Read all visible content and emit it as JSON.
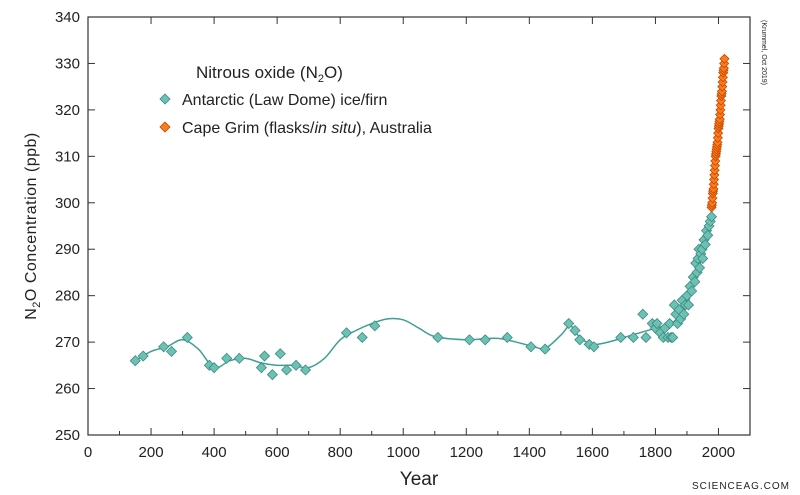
{
  "chart_data": {
    "type": "scatter",
    "xlabel": "Year",
    "ylabel": "Concentration (ppb)",
    "ylabel_species": {
      "base": "N",
      "sub": "2",
      "tail": "O"
    },
    "xlim": [
      0,
      2100
    ],
    "ylim": [
      250,
      340
    ],
    "xticks": [
      0,
      200,
      400,
      600,
      800,
      1000,
      1200,
      1400,
      1600,
      1800,
      2000
    ],
    "yticks": [
      250,
      260,
      270,
      280,
      290,
      300,
      310,
      320,
      330,
      340
    ],
    "grid": false,
    "legend": {
      "placement": "top-left",
      "title": {
        "pre": "Nitrous oxide (N",
        "sub": "2",
        "post": "O)"
      },
      "entries": [
        {
          "series": "law_dome",
          "text": "Antarctic (Law Dome) ice/firn"
        },
        {
          "series": "cape_grim",
          "pre": "Cape Grim (flasks/",
          "italic": "in situ",
          "post": "), Australia"
        }
      ]
    },
    "series": [
      {
        "id": "law_dome",
        "name": "Antarctic (Law Dome) ice/firn",
        "color": "#6cc1b5",
        "stroke": "#3f8a80",
        "marker": "diamond",
        "points": [
          [
            150,
            266
          ],
          [
            175,
            267
          ],
          [
            240,
            269
          ],
          [
            265,
            268
          ],
          [
            315,
            271
          ],
          [
            385,
            265
          ],
          [
            400,
            264.5
          ],
          [
            440,
            266.5
          ],
          [
            480,
            266.5
          ],
          [
            550,
            264.5
          ],
          [
            560,
            267
          ],
          [
            585,
            263
          ],
          [
            610,
            267.5
          ],
          [
            630,
            264
          ],
          [
            660,
            265
          ],
          [
            690,
            264
          ],
          [
            820,
            272
          ],
          [
            870,
            271
          ],
          [
            910,
            273.5
          ],
          [
            1110,
            271
          ],
          [
            1210,
            270.5
          ],
          [
            1260,
            270.5
          ],
          [
            1330,
            271
          ],
          [
            1405,
            269
          ],
          [
            1450,
            268.5
          ],
          [
            1525,
            274
          ],
          [
            1545,
            272.5
          ],
          [
            1560,
            270.5
          ],
          [
            1590,
            269.5
          ],
          [
            1605,
            269
          ],
          [
            1690,
            271
          ],
          [
            1730,
            271
          ],
          [
            1760,
            276
          ],
          [
            1770,
            271
          ],
          [
            1790,
            274
          ],
          [
            1800,
            273
          ],
          [
            1805,
            274
          ],
          [
            1815,
            272
          ],
          [
            1825,
            271
          ],
          [
            1830,
            273
          ],
          [
            1840,
            271
          ],
          [
            1845,
            274
          ],
          [
            1850,
            271
          ],
          [
            1855,
            271
          ],
          [
            1860,
            278
          ],
          [
            1865,
            276
          ],
          [
            1870,
            274
          ],
          [
            1875,
            277
          ],
          [
            1880,
            275
          ],
          [
            1885,
            279
          ],
          [
            1890,
            276
          ],
          [
            1895,
            278
          ],
          [
            1900,
            280
          ],
          [
            1905,
            278
          ],
          [
            1910,
            282
          ],
          [
            1915,
            281
          ],
          [
            1920,
            284
          ],
          [
            1925,
            283
          ],
          [
            1928,
            287
          ],
          [
            1932,
            285
          ],
          [
            1935,
            288
          ],
          [
            1938,
            290
          ],
          [
            1940,
            286
          ],
          [
            1944,
            289
          ],
          [
            1948,
            290
          ],
          [
            1950,
            288
          ],
          [
            1954,
            292
          ],
          [
            1958,
            291
          ],
          [
            1962,
            294
          ],
          [
            1966,
            293
          ],
          [
            1970,
            295
          ],
          [
            1974,
            296
          ],
          [
            1978,
            297
          ]
        ],
        "fit_curve": [
          [
            150,
            266
          ],
          [
            200,
            268
          ],
          [
            250,
            269
          ],
          [
            300,
            270.5
          ],
          [
            350,
            268.5
          ],
          [
            400,
            264.5
          ],
          [
            450,
            266
          ],
          [
            500,
            266.5
          ],
          [
            550,
            265.5
          ],
          [
            600,
            265
          ],
          [
            650,
            265
          ],
          [
            700,
            264.5
          ],
          [
            750,
            266.5
          ],
          [
            800,
            270.5
          ],
          [
            850,
            272.5
          ],
          [
            900,
            274
          ],
          [
            950,
            275
          ],
          [
            1000,
            274.8
          ],
          [
            1050,
            273
          ],
          [
            1100,
            271.2
          ],
          [
            1200,
            270.5
          ],
          [
            1300,
            270.8
          ],
          [
            1400,
            269.3
          ],
          [
            1450,
            268.7
          ],
          [
            1500,
            271.5
          ],
          [
            1530,
            273.5
          ],
          [
            1560,
            271
          ],
          [
            1600,
            269.5
          ],
          [
            1650,
            270
          ],
          [
            1700,
            271
          ],
          [
            1750,
            272
          ],
          [
            1800,
            273
          ],
          [
            1850,
            274
          ],
          [
            1880,
            276
          ],
          [
            1900,
            278
          ],
          [
            1920,
            282
          ],
          [
            1940,
            287
          ],
          [
            1960,
            292
          ],
          [
            1980,
            298
          ]
        ]
      },
      {
        "id": "cape_grim",
        "name": "Cape Grim (flasks/in situ), Australia",
        "color": "#ff7a1a",
        "stroke": "#c04a00",
        "marker": "diamond",
        "points": [
          [
            1978,
            299
          ],
          [
            1979,
            299.5
          ],
          [
            1980,
            300
          ],
          [
            1981,
            301
          ],
          [
            1982,
            302
          ],
          [
            1983,
            302.5
          ],
          [
            1984,
            303
          ],
          [
            1985,
            304
          ],
          [
            1986,
            305
          ],
          [
            1987,
            306
          ],
          [
            1988,
            307
          ],
          [
            1989,
            308
          ],
          [
            1990,
            309
          ],
          [
            1991,
            310
          ],
          [
            1992,
            310.5
          ],
          [
            1993,
            311
          ],
          [
            1994,
            311.5
          ],
          [
            1995,
            312
          ],
          [
            1996,
            312.5
          ],
          [
            1997,
            313
          ],
          [
            1998,
            314
          ],
          [
            1999,
            315
          ],
          [
            2000,
            316
          ],
          [
            2001,
            316.5
          ],
          [
            2002,
            317
          ],
          [
            2003,
            317.5
          ],
          [
            2004,
            318
          ],
          [
            2005,
            319
          ],
          [
            2006,
            320
          ],
          [
            2007,
            321
          ],
          [
            2008,
            322
          ],
          [
            2009,
            323
          ],
          [
            2010,
            323.5
          ],
          [
            2011,
            324
          ],
          [
            2012,
            325
          ],
          [
            2013,
            326
          ],
          [
            2014,
            327
          ],
          [
            2015,
            328
          ],
          [
            2016,
            328.5
          ],
          [
            2017,
            329
          ],
          [
            2018,
            330
          ],
          [
            2019,
            331
          ]
        ]
      }
    ],
    "credit": "(Krummel, Oct 2019)",
    "watermark": "SCIENCEAG.COM"
  }
}
